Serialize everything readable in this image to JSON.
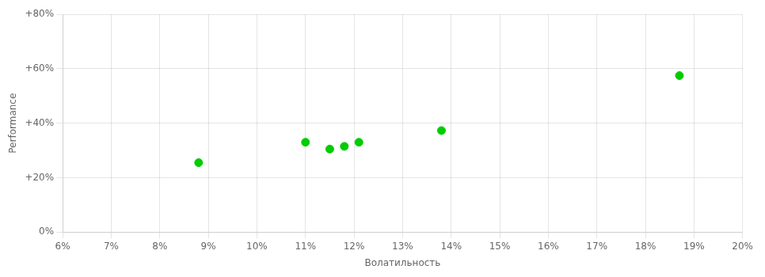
{
  "chart_data": {
    "type": "scatter",
    "xlabel": "Волатильность",
    "ylabel": "Performance",
    "x": [
      0.088,
      0.11,
      0.115,
      0.118,
      0.121,
      0.138,
      0.187
    ],
    "values": [
      0.255,
      0.33,
      0.305,
      0.315,
      0.33,
      0.373,
      0.575
    ],
    "color": "#00cc00",
    "marker": "circle",
    "xlim": [
      0.06,
      0.2
    ],
    "ylim": [
      0.0,
      0.8
    ],
    "xticks": [
      {
        "value": 0.06,
        "label": "6%"
      },
      {
        "value": 0.07,
        "label": "7%"
      },
      {
        "value": 0.08,
        "label": "8%"
      },
      {
        "value": 0.09,
        "label": "9%"
      },
      {
        "value": 0.1,
        "label": "10%"
      },
      {
        "value": 0.11,
        "label": "11%"
      },
      {
        "value": 0.12,
        "label": "12%"
      },
      {
        "value": 0.13,
        "label": "13%"
      },
      {
        "value": 0.14,
        "label": "14%"
      },
      {
        "value": 0.15,
        "label": "15%"
      },
      {
        "value": 0.16,
        "label": "16%"
      },
      {
        "value": 0.17,
        "label": "17%"
      },
      {
        "value": 0.18,
        "label": "18%"
      },
      {
        "value": 0.19,
        "label": "19%"
      },
      {
        "value": 0.2,
        "label": "20%"
      }
    ],
    "yticks": [
      {
        "value": 0.0,
        "label": "0%"
      },
      {
        "value": 0.2,
        "label": "+20%"
      },
      {
        "value": 0.4,
        "label": "+40%"
      },
      {
        "value": 0.6,
        "label": "+60%"
      },
      {
        "value": 0.8,
        "label": "+80%"
      }
    ],
    "grid": true
  }
}
